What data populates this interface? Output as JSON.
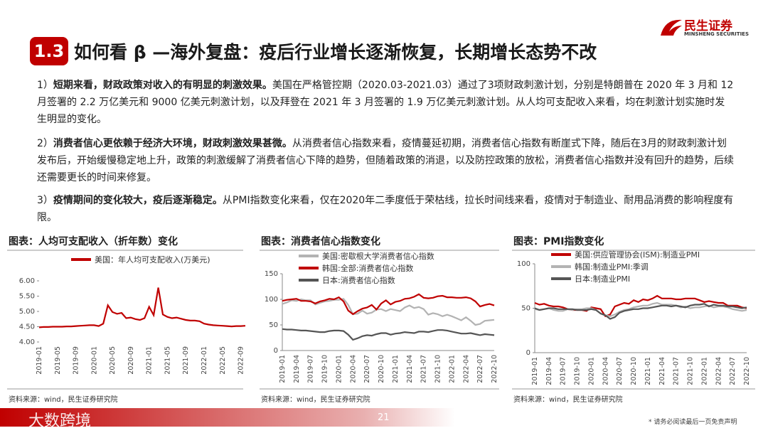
{
  "header": {
    "logo_cn": "民生证券",
    "logo_en": "MINSHENG SECURITIES"
  },
  "title": {
    "number": "1.3",
    "text": "如何看 β —海外复盘：疫后行业增长逐渐恢复，长期增长态势不改"
  },
  "paragraphs": [
    {
      "num": "1）",
      "bold": "短期来看，财政政策对收入的有明显的刺激效果。",
      "text": "美国在严格管控期（2020.03-2021.03）通过了3项财政刺激计划，分别是特朗普在 2020 年 3 月和 12 月签署的 2.2 万亿美元和 9000 亿美元刺激计划，以及拜登在 2021 年 3 月签署的 1.9 万亿美元刺激计划。从人均可支配收入来看，均在刺激计划实施时发生明显的变化。"
    },
    {
      "num": "2）",
      "bold": "消费者信心更依赖于经济大环境，财政刺激效果甚微。",
      "text": "从消费者信心指数来看，疫情蔓延初期，消费者信心指数有断崖式下降，随后在3月的财政刺激计划发布后，开始缓慢稳定地上升，政策的刺激缓解了消费者信心下降的趋势，但随着政策的消退，以及防控政策的放松，消费者信心指数并没有回升的趋势，后续还需要更长的时间来修复。"
    },
    {
      "num": "3）",
      "bold": "疫情期间的变化较大，疫后逐渐稳定。",
      "text": "从PMI指数变化来看，仅在2020年二季度低于荣枯线，拉长时间线来看，疫情对于制造业、耐用品消费的影响程度有限。"
    }
  ],
  "chart_data": [
    {
      "type": "line",
      "title": "图表：人均可支配收入（折年数）变化",
      "source": "资料来源：wind，民生证券研究院",
      "categories": [
        "2019-01",
        null,
        null,
        null,
        "2019-05",
        null,
        null,
        null,
        "2019-09",
        null,
        null,
        null,
        "2020-01",
        null,
        null,
        null,
        "2020-05",
        null,
        null,
        null,
        "2020-09",
        null,
        null,
        null,
        "2021-01",
        null,
        null,
        null,
        "2021-05",
        null,
        null,
        null,
        "2021-09",
        null,
        null,
        null,
        "2022-01",
        null,
        null,
        null,
        "2022-05",
        null,
        null,
        null,
        "2022-09",
        null
      ],
      "series": [
        {
          "name": "美国：年人均可支配收入(万美元)",
          "color": "#c00000",
          "values": [
            4.48,
            4.49,
            4.49,
            4.5,
            4.5,
            4.5,
            4.51,
            4.51,
            4.52,
            4.53,
            4.54,
            4.55,
            4.55,
            4.52,
            4.6,
            5.2,
            4.98,
            4.92,
            4.95,
            4.78,
            4.8,
            4.75,
            4.72,
            4.78,
            5.15,
            4.88,
            5.78,
            4.9,
            4.82,
            4.78,
            4.8,
            4.76,
            4.72,
            4.7,
            4.7,
            4.68,
            4.6,
            4.57,
            4.55,
            4.54,
            4.53,
            4.52,
            4.51,
            4.52,
            4.52,
            4.53
          ]
        }
      ],
      "ylim": [
        4,
        6
      ],
      "yticks": [
        {
          "value": 4,
          "label": "4.00"
        },
        {
          "value": 4.5,
          "label": "4.50"
        },
        {
          "value": 5,
          "label": "5.00"
        },
        {
          "value": 5.5,
          "label": "5.50"
        },
        {
          "value": 6,
          "label": "6.00"
        }
      ]
    },
    {
      "type": "line",
      "title": "图表：消费者信心指数变化",
      "source": "资料来源：wind，民生证券研究院",
      "categories": [
        "2019-01",
        null,
        null,
        "2019-04",
        null,
        null,
        "2019-07",
        null,
        null,
        "2019-10",
        null,
        null,
        "2020-01",
        null,
        null,
        "2020-04",
        null,
        null,
        "2020-07",
        null,
        null,
        "2020-10",
        null,
        null,
        "2021-01",
        null,
        null,
        "2021-04",
        null,
        null,
        "2021-07",
        null,
        null,
        "2021-10",
        null,
        null,
        "2022-01",
        null,
        null,
        "2022-04",
        null,
        null,
        "2022-07",
        null,
        null,
        "2022-10"
      ],
      "series": [
        {
          "name": "美国:密歇根大学消费者信心指数",
          "color": "#b3b3b3",
          "values": [
            91,
            94,
            98,
            97,
            100,
            98,
            98,
            90,
            93,
            96,
            97,
            99,
            99,
            101,
            89,
            71,
            72,
            78,
            72,
            74,
            80,
            81,
            77,
            81,
            79,
            77,
            84,
            88,
            83,
            85,
            81,
            70,
            73,
            71,
            67,
            70,
            67,
            63,
            59,
            65,
            58,
            50,
            52,
            58,
            59,
            60
          ]
        },
        {
          "name": "韩国:全部:消费者信心指数",
          "color": "#c00000",
          "values": [
            97,
            99,
            100,
            101,
            97,
            97,
            96,
            92,
            96,
            98,
            101,
            100,
            104,
            96,
            78,
            71,
            77,
            82,
            84,
            89,
            80,
            92,
            98,
            90,
            95,
            97,
            101,
            102,
            105,
            110,
            103,
            102,
            103,
            106,
            107,
            104,
            104,
            103,
            103,
            104,
            102,
            96,
            86,
            89,
            91,
            88
          ]
        },
        {
          "name": "日本:消费者信心指数",
          "color": "#555555",
          "values": [
            42,
            41,
            41,
            40,
            39,
            39,
            38,
            37,
            36,
            36,
            38,
            39,
            39,
            38,
            31,
            21,
            24,
            28,
            30,
            29,
            32,
            34,
            34,
            31,
            33,
            34,
            36,
            35,
            34,
            37,
            37,
            36,
            38,
            40,
            40,
            39,
            37,
            35,
            33,
            33,
            34,
            32,
            30,
            32,
            31,
            30
          ]
        }
      ],
      "ylim": [
        0,
        150
      ],
      "yticks": [
        0,
        50,
        100,
        150
      ]
    },
    {
      "type": "line",
      "title": "图表：PMI指数变化",
      "source": "资料来源：wind，民生证券研究院",
      "categories": [
        "2019-01",
        null,
        null,
        "2019-04",
        null,
        null,
        "2019-07",
        null,
        null,
        "2019-10",
        null,
        null,
        "2020-01",
        null,
        null,
        "2020-04",
        null,
        null,
        "2020-07",
        null,
        null,
        "2020-10",
        null,
        null,
        "2021-01",
        null,
        null,
        "2021-04",
        null,
        null,
        "2021-07",
        null,
        null,
        "2021-10",
        null,
        null,
        "2022-01",
        null,
        null,
        "2022-04",
        null,
        null,
        "2022-07",
        null,
        null,
        "2022-10"
      ],
      "series": [
        {
          "name": "美国:供应管理协会(ISM):制造业PMI",
          "color": "#c00000",
          "values": [
            56,
            54,
            55,
            53,
            52,
            52,
            51,
            49,
            48,
            48,
            48,
            47,
            51,
            50,
            49,
            41,
            43,
            52,
            54,
            56,
            55,
            59,
            57,
            60,
            59,
            61,
            64,
            61,
            61,
            61,
            60,
            60,
            61,
            61,
            61,
            59,
            57,
            58,
            57,
            56,
            56,
            53,
            53,
            53,
            51,
            50
          ]
        },
        {
          "name": "韩国:制造业PMI:季调",
          "color": "#b3b3b3",
          "values": [
            49,
            48,
            49,
            50,
            48,
            47,
            47,
            49,
            48,
            49,
            49,
            50,
            50,
            48,
            44,
            42,
            41,
            43,
            46,
            48,
            49,
            51,
            52,
            53,
            53,
            55,
            56,
            54,
            54,
            54,
            53,
            51,
            52,
            50,
            51,
            51,
            52,
            53,
            51,
            52,
            52,
            51,
            49,
            48,
            47,
            48
          ]
        },
        {
          "name": "日本:制造业PMI",
          "color": "#555555",
          "values": [
            50,
            48,
            49,
            50,
            50,
            49,
            49,
            49,
            49,
            48,
            48,
            48,
            49,
            48,
            44,
            42,
            38,
            40,
            45,
            47,
            48,
            49,
            49,
            50,
            50,
            51,
            52,
            53,
            53,
            52,
            53,
            52,
            51,
            53,
            54,
            54,
            55,
            52,
            54,
            53,
            53,
            52,
            52,
            51,
            50,
            51
          ]
        }
      ],
      "ylim": [
        0,
        100
      ],
      "yticks": [
        0,
        50,
        100
      ]
    }
  ],
  "footer": {
    "page": "21",
    "disclaimer": "* 请务必阅读最后一页免责声明",
    "watermark": "大数跨境"
  }
}
